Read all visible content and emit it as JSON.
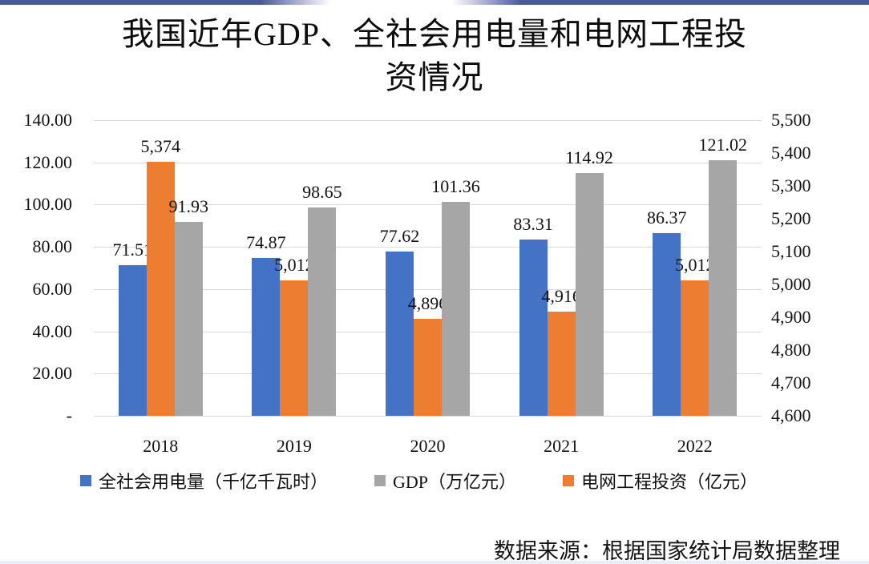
{
  "page": {
    "source_note": "数据来源：根据国家统计局数据整理",
    "background_color": "#ffffff",
    "border_accent_color": "#2b3a8c",
    "gridline_color": "#d9d9d9"
  },
  "chart_data": {
    "type": "bar",
    "title": "我国近年GDP、全社会用电量和电网工程投资情况",
    "title_lines": [
      "我国近年GDP、全社会用电量和电网工程投",
      "资情况"
    ],
    "categories": [
      "2018",
      "2019",
      "2020",
      "2021",
      "2022"
    ],
    "series": [
      {
        "key": "electricity-consumption",
        "name": "全社会用电量（千亿千瓦时）",
        "axis": "left",
        "color": "#4472C4",
        "values": [
          71.51,
          74.87,
          77.62,
          83.31,
          86.37
        ],
        "labels": [
          "71.51",
          "74.87",
          "77.62",
          "83.31",
          "86.37"
        ]
      },
      {
        "key": "grid-investment",
        "name": "电网工程投资（亿元）",
        "axis": "right",
        "color": "#ED7D31",
        "values": [
          5374,
          5012,
          4896,
          4916,
          5012
        ],
        "labels": [
          "5,374",
          "5,012",
          "4,896",
          "4,916",
          "5,012"
        ]
      },
      {
        "key": "gdp",
        "name": "GDP（万亿元）",
        "axis": "left",
        "color": "#A6A6A6",
        "values": [
          91.93,
          98.65,
          101.36,
          114.92,
          121.02
        ],
        "labels": [
          "91.93",
          "98.65",
          "101.36",
          "114.92",
          "121.02"
        ]
      }
    ],
    "legend": [
      {
        "label": "全社会用电量（千亿千瓦时）",
        "color": "#4472C4"
      },
      {
        "label": "GDP（万亿元）",
        "color": "#A6A6A6"
      },
      {
        "label": "电网工程投资（亿元）",
        "color": "#ED7D31"
      }
    ],
    "left_axis": {
      "min": 0,
      "max": 140,
      "tick_labels": [
        "140.00",
        "120.00",
        "100.00",
        "80.00",
        "60.00",
        "40.00",
        "20.00",
        "-"
      ]
    },
    "right_axis": {
      "min": 4600,
      "max": 5500,
      "tick_labels": [
        "5,500",
        "5,400",
        "5,300",
        "5,200",
        "5,100",
        "5,000",
        "4,900",
        "4,800",
        "4,700",
        "4,600"
      ]
    },
    "gridlines": true,
    "legend_position": "bottom"
  }
}
